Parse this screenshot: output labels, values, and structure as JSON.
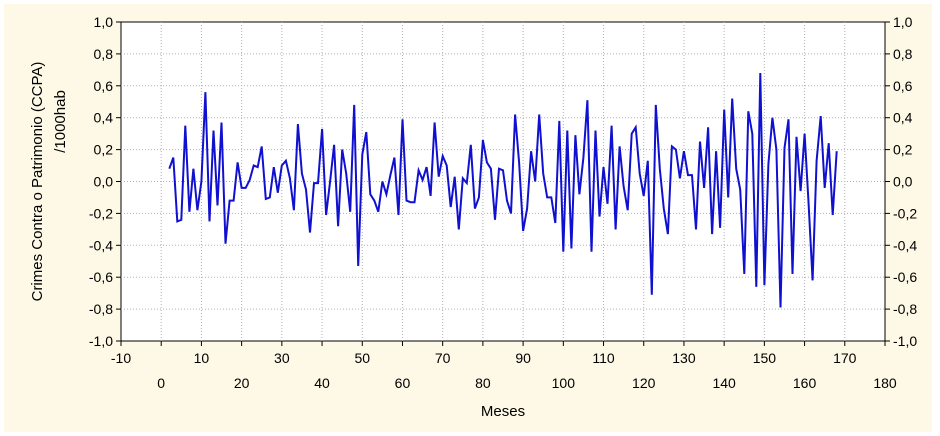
{
  "chart_data": {
    "type": "line",
    "xlabel": "Meses",
    "ylabel_line1": "Crimes Contra o Patrimonio (CCPA)",
    "ylabel_line2": "/1000hab",
    "xlim": [
      -10,
      180
    ],
    "ylim": [
      -1.0,
      1.0
    ],
    "x_ticks_top_row": [
      "-10",
      "10",
      "30",
      "50",
      "70",
      "90",
      "110",
      "130",
      "150",
      "170"
    ],
    "x_ticks_top_values": [
      -10,
      10,
      30,
      50,
      70,
      90,
      110,
      130,
      150,
      170
    ],
    "x_ticks_bottom_row": [
      "0",
      "20",
      "40",
      "60",
      "80",
      "100",
      "120",
      "140",
      "160",
      "180"
    ],
    "x_ticks_bottom_values": [
      0,
      20,
      40,
      60,
      80,
      100,
      120,
      140,
      160,
      180
    ],
    "y_tick_labels": [
      "1,0",
      "0,8",
      "0,6",
      "0,4",
      "0,2",
      "0,0",
      "-0,2",
      "-0,4",
      "-0,6",
      "-0,8",
      "-1,0"
    ],
    "y_tick_values": [
      1.0,
      0.8,
      0.6,
      0.4,
      0.2,
      0.0,
      -0.2,
      -0.4,
      -0.6,
      -0.8,
      -1.0
    ],
    "grid": true,
    "line_color": "#1010d0",
    "background_color": "#fdf9e6",
    "series": [
      {
        "x": [
          2,
          3,
          4,
          5,
          6,
          7,
          8,
          9,
          10,
          11,
          12,
          13,
          14,
          15,
          16,
          17,
          18,
          19,
          20,
          21,
          22,
          23,
          24,
          25,
          26,
          27,
          28,
          29,
          30,
          31,
          32,
          33,
          34,
          35,
          36,
          37,
          38,
          39,
          40,
          41,
          42,
          43,
          44,
          45,
          46,
          47,
          48,
          49,
          50,
          51,
          52,
          53,
          54,
          55,
          56,
          57,
          58,
          59,
          60,
          61,
          62,
          63,
          64,
          65,
          66,
          67,
          68,
          69,
          70,
          71,
          72,
          73,
          74,
          75,
          76,
          77,
          78,
          79,
          80,
          81,
          82,
          83,
          84,
          85,
          86,
          87,
          88,
          89,
          90,
          91,
          92,
          93,
          94,
          95,
          96,
          97,
          98,
          99,
          100,
          101,
          102,
          103,
          104,
          105,
          106,
          107,
          108,
          109,
          110,
          111,
          112,
          113,
          114,
          115,
          116,
          117,
          118,
          119,
          120,
          121,
          122,
          123,
          124,
          125,
          126,
          127,
          128,
          129,
          130,
          131,
          132,
          133,
          134,
          135,
          136,
          137,
          138,
          139,
          140,
          141,
          142,
          143,
          144,
          145,
          146,
          147,
          148,
          149,
          150,
          151,
          152,
          153,
          154,
          155,
          156,
          157,
          158,
          159,
          160,
          161,
          162,
          163,
          164,
          165,
          166,
          167,
          168
        ],
        "y": [
          0.08,
          0.15,
          -0.25,
          -0.24,
          0.35,
          -0.19,
          0.08,
          -0.18,
          0.0,
          0.56,
          -0.25,
          0.32,
          -0.15,
          0.37,
          -0.39,
          -0.12,
          -0.12,
          0.12,
          -0.04,
          -0.04,
          0.01,
          0.1,
          0.09,
          0.22,
          -0.11,
          -0.1,
          0.09,
          -0.07,
          0.1,
          0.13,
          0.02,
          -0.18,
          0.36,
          0.05,
          -0.05,
          -0.32,
          -0.01,
          -0.01,
          0.33,
          -0.21,
          0.0,
          0.23,
          -0.28,
          0.2,
          0.05,
          -0.19,
          0.48,
          -0.53,
          0.17,
          0.31,
          -0.08,
          -0.12,
          -0.19,
          0.0,
          -0.08,
          0.04,
          0.15,
          -0.21,
          0.39,
          -0.12,
          -0.13,
          -0.13,
          0.07,
          0.01,
          0.09,
          -0.09,
          0.37,
          0.03,
          0.16,
          0.1,
          -0.16,
          0.03,
          -0.3,
          0.02,
          -0.01,
          0.23,
          -0.17,
          -0.1,
          0.26,
          0.12,
          0.08,
          -0.24,
          0.08,
          0.07,
          -0.12,
          -0.2,
          0.42,
          0.12,
          -0.31,
          -0.17,
          0.19,
          0.0,
          0.42,
          0.05,
          -0.1,
          -0.1,
          -0.26,
          0.38,
          -0.44,
          0.32,
          -0.42,
          0.29,
          -0.08,
          0.15,
          0.51,
          -0.44,
          0.32,
          -0.22,
          0.09,
          -0.14,
          0.35,
          -0.3,
          0.22,
          -0.03,
          -0.18,
          0.3,
          0.34,
          0.05,
          -0.09,
          0.13,
          -0.71,
          0.48,
          0.08,
          -0.17,
          -0.33,
          0.22,
          0.2,
          0.02,
          0.19,
          0.04,
          0.04,
          -0.3,
          0.25,
          -0.04,
          0.34,
          -0.33,
          0.19,
          -0.29,
          0.45,
          -0.1,
          0.52,
          0.08,
          -0.05,
          -0.58,
          0.44,
          0.3,
          -0.66,
          0.68,
          -0.65,
          0.11,
          0.4,
          0.2,
          -0.79,
          0.21,
          0.39,
          -0.58,
          0.28,
          -0.06,
          0.3,
          -0.14,
          -0.62,
          0.13,
          0.41,
          -0.04,
          0.24,
          -0.21,
          0.19
        ]
      }
    ]
  }
}
